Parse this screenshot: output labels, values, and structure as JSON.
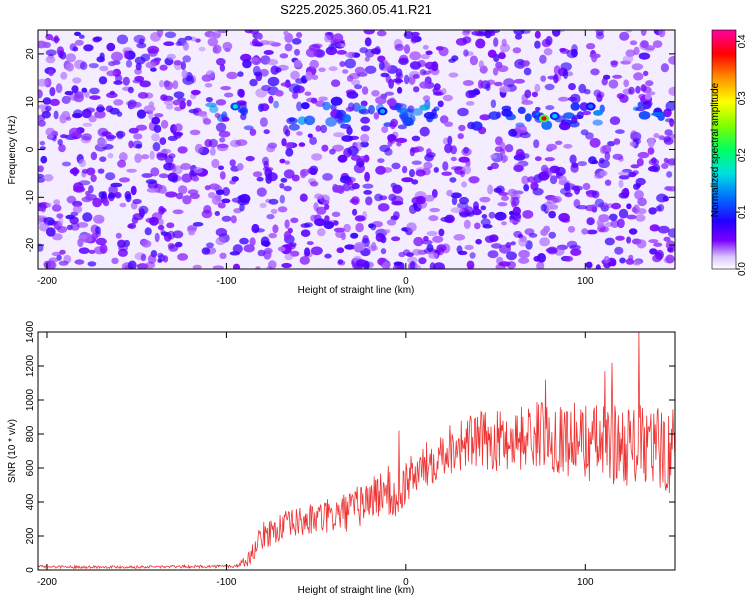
{
  "title": "S225.2025.360.05.41.R21",
  "colors": {
    "snr_line": "#ee3333",
    "colormap": [
      "#ffffff",
      "#7b00ff",
      "#0000ff",
      "#00a0ff",
      "#00ff80",
      "#80ff00",
      "#ffff00",
      "#ff8000",
      "#ff0000",
      "#ff00a0"
    ]
  },
  "chart_data": [
    {
      "type": "heatmap",
      "xlabel": "Height of straight line (km)",
      "ylabel": "Frequency (Hz)",
      "xlim": [
        -205,
        150
      ],
      "ylim": [
        -25,
        25
      ],
      "x_ticks": [
        "-200",
        "-100",
        "0",
        "100"
      ],
      "x_tick_values": [
        -200,
        -100,
        0,
        100
      ],
      "y_ticks": [
        "-20",
        "-10",
        "0",
        "10",
        "20"
      ],
      "y_tick_values": [
        -20,
        -10,
        0,
        10,
        20
      ],
      "colorbar": {
        "label": "Normalized spectral amplitude",
        "range": [
          0.0,
          0.42
        ],
        "ticks": [
          "0.0",
          "0.1",
          "0.2",
          "0.3",
          "0.4"
        ],
        "tick_values": [
          0.0,
          0.1,
          0.2,
          0.3,
          0.4
        ]
      },
      "band": {
        "x_from": -110,
        "x_to": 150,
        "y_center": 7,
        "y_halfwidth": 2.5
      },
      "hotspots": [
        {
          "x": 77,
          "y": 6.5,
          "value": 0.38
        },
        {
          "x": -95,
          "y": 9,
          "value": 0.18
        },
        {
          "x": -13,
          "y": 8,
          "value": 0.15
        },
        {
          "x": 83,
          "y": 7,
          "value": 0.16
        },
        {
          "x": 103,
          "y": 9,
          "value": 0.13
        }
      ]
    },
    {
      "type": "line",
      "xlabel": "Height of straight line (km)",
      "ylabel": "SNR (10 * v/v)",
      "xlim": [
        -205,
        150
      ],
      "ylim": [
        0,
        1400
      ],
      "x_ticks": [
        "-200",
        "-100",
        "0",
        "100"
      ],
      "x_tick_values": [
        -200,
        -100,
        0,
        100
      ],
      "y_ticks": [
        "0",
        "200",
        "400",
        "600",
        "800",
        "1000",
        "1200",
        "1400"
      ],
      "y_tick_values": [
        0,
        200,
        400,
        600,
        800,
        1000,
        1200,
        1400
      ],
      "series": [
        {
          "x": [
            -205,
            -180,
            -150,
            -120,
            -95,
            -88,
            -80,
            -70,
            -60,
            -50,
            -40,
            -30,
            -20,
            -10,
            -5,
            0,
            5,
            10,
            20,
            30,
            40,
            50,
            60,
            75,
            90,
            105,
            120,
            135,
            150
          ],
          "y": [
            20,
            18,
            18,
            20,
            22,
            60,
            200,
            250,
            280,
            300,
            320,
            350,
            420,
            470,
            380,
            520,
            560,
            600,
            700,
            740,
            760,
            760,
            770,
            800,
            770,
            750,
            740,
            720,
            700
          ],
          "spread": [
            8,
            8,
            8,
            8,
            10,
            40,
            80,
            90,
            90,
            100,
            110,
            120,
            140,
            150,
            150,
            130,
            130,
            140,
            150,
            160,
            170,
            180,
            190,
            200,
            220,
            240,
            240,
            250,
            260
          ],
          "spikes": [
            {
              "x": -4,
              "y": 820
            },
            {
              "x": 130,
              "y": 1410
            },
            {
              "x": 111,
              "y": 1170
            },
            {
              "x": 115,
              "y": 1220
            },
            {
              "x": 78,
              "y": 1120
            }
          ]
        }
      ]
    }
  ]
}
